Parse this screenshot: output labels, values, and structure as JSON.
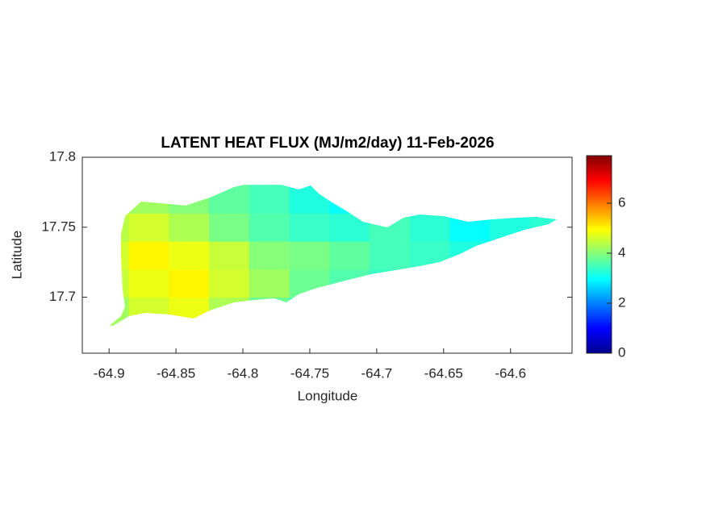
{
  "chart_data": {
    "type": "heatmap",
    "title": "LATENT HEAT FLUX (MJ/m2/day) 11-Feb-2026",
    "xlabel": "Longitude",
    "ylabel": "Latitude",
    "xlim": [
      -64.92,
      -64.554
    ],
    "ylim": [
      17.66,
      17.8
    ],
    "xticks": [
      -64.9,
      -64.85,
      -64.8,
      -64.75,
      -64.7,
      -64.65,
      -64.6
    ],
    "yticks": [
      17.7,
      17.75,
      17.8
    ],
    "colormap": "jet",
    "clim": [
      0,
      7.9
    ],
    "cticks": [
      0,
      2,
      4,
      6
    ],
    "x": [
      -64.9,
      -64.87,
      -64.84,
      -64.81,
      -64.78,
      -64.75,
      -64.72,
      -64.69,
      -64.66,
      -64.63,
      -64.6,
      -64.57
    ],
    "y": [
      17.69,
      17.71,
      17.73,
      17.75,
      17.77
    ],
    "z": [
      [
        4.2,
        4.6,
        4.8,
        4.3,
        3.8,
        3.5,
        3.0,
        3.0,
        3.0,
        3.0,
        3.0,
        3.0
      ],
      [
        4.5,
        4.8,
        5.0,
        4.6,
        4.2,
        3.8,
        3.6,
        3.4,
        3.3,
        2.8,
        3.0,
        3.0
      ],
      [
        4.6,
        5.0,
        4.8,
        4.5,
        4.0,
        3.9,
        3.7,
        3.5,
        3.4,
        3.2,
        3.0,
        3.2
      ],
      [
        4.4,
        4.6,
        4.3,
        3.9,
        3.6,
        3.4,
        3.3,
        3.5,
        3.3,
        3.0,
        3.2,
        3.3
      ],
      [
        4.3,
        4.2,
        4.0,
        3.7,
        3.5,
        3.2,
        3.0,
        3.2,
        3.0,
        3.0,
        3.0,
        3.0
      ]
    ]
  }
}
